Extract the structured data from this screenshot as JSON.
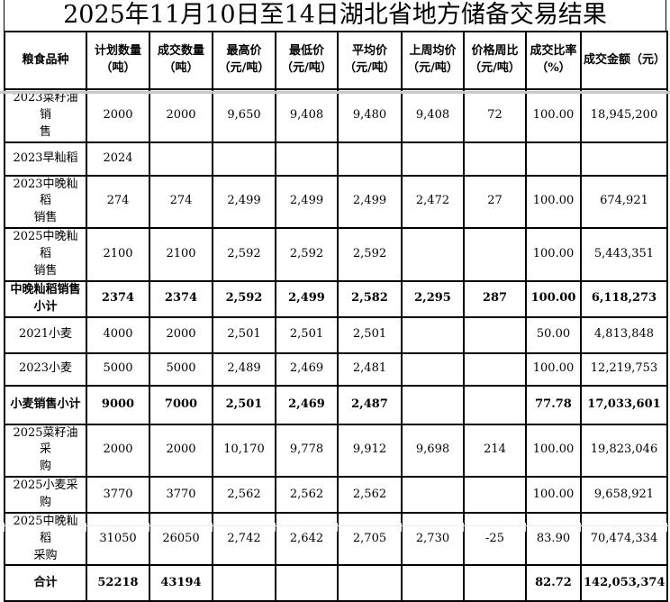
{
  "title": "2025年11月10日至14日湖北省地方储备交易结果",
  "table": {
    "columns": [
      "粮食品种",
      "计划数量\n（吨）",
      "成交数量\n（吨）",
      "最高价\n（元/吨）",
      "最低价\n（元/吨）",
      "平均价\n（元/吨）",
      "上周均价\n（元/吨）",
      "价格周比\n（元/吨）",
      "成交比率\n（%）",
      "成交金额（元）"
    ],
    "rows": [
      {
        "name": "2023菜籽油销\n售",
        "bold": false,
        "cells": [
          "2000",
          "2000",
          "9,650",
          "9,408",
          "9,480",
          "9,408",
          "72",
          "100.00",
          "18,945,200"
        ]
      },
      {
        "name": "2023早籼稻",
        "bold": false,
        "cells": [
          "2024",
          "",
          "",
          "",
          "",
          "",
          "",
          "",
          ""
        ]
      },
      {
        "name": "2023中晚籼稻\n销售",
        "bold": false,
        "cells": [
          "274",
          "274",
          "2,499",
          "2,499",
          "2,499",
          "2,472",
          "27",
          "100.00",
          "674,921"
        ]
      },
      {
        "name": "2025中晚籼稻\n销售",
        "bold": false,
        "cells": [
          "2100",
          "2100",
          "2,592",
          "2,592",
          "2,592",
          "",
          "",
          "100.00",
          "5,443,351"
        ]
      },
      {
        "name": "中晚籼稻销售\n小计",
        "bold": true,
        "cells": [
          "2374",
          "2374",
          "2,592",
          "2,499",
          "2,582",
          "2,295",
          "287",
          "100.00",
          "6,118,273"
        ]
      },
      {
        "name": "2021小麦",
        "bold": false,
        "cells": [
          "4000",
          "2000",
          "2,501",
          "2,501",
          "2,501",
          "",
          "",
          "50.00",
          "4,813,848"
        ]
      },
      {
        "name": "2023小麦",
        "bold": false,
        "cells": [
          "5000",
          "5000",
          "2,489",
          "2,469",
          "2,481",
          "",
          "",
          "100.00",
          "12,219,753"
        ]
      },
      {
        "name": "小麦销售小计",
        "bold": true,
        "cells": [
          "9000",
          "7000",
          "2,501",
          "2,469",
          "2,487",
          "",
          "",
          "77.78",
          "17,033,601"
        ]
      },
      {
        "name": "2025菜籽油采\n购",
        "bold": false,
        "cells": [
          "2000",
          "2000",
          "10,170",
          "9,778",
          "9,912",
          "9,698",
          "214",
          "100.00",
          "19,823,046"
        ]
      },
      {
        "name": "2025小麦采购",
        "bold": false,
        "cells": [
          "3770",
          "3770",
          "2,562",
          "2,562",
          "2,562",
          "",
          "",
          "100.00",
          "9,658,921"
        ]
      },
      {
        "name": "2025中晚籼稻\n采购",
        "bold": false,
        "cells": [
          "31050",
          "26050",
          "2,742",
          "2,642",
          "2,705",
          "2,730",
          "-25",
          "83.90",
          "70,474,334"
        ]
      },
      {
        "name": "合计",
        "bold": true,
        "cells": [
          "52218",
          "43194",
          "",
          "",
          "",
          "",
          "",
          "82.72",
          "142,053,374"
        ]
      }
    ]
  },
  "colors": {
    "border": "#000000",
    "text": "#000000",
    "background": "#ffffff",
    "freeze_shadow": "#c8c8c8",
    "faint_grid": "#e2e2e2",
    "faint_grid_h": "#ececec"
  }
}
